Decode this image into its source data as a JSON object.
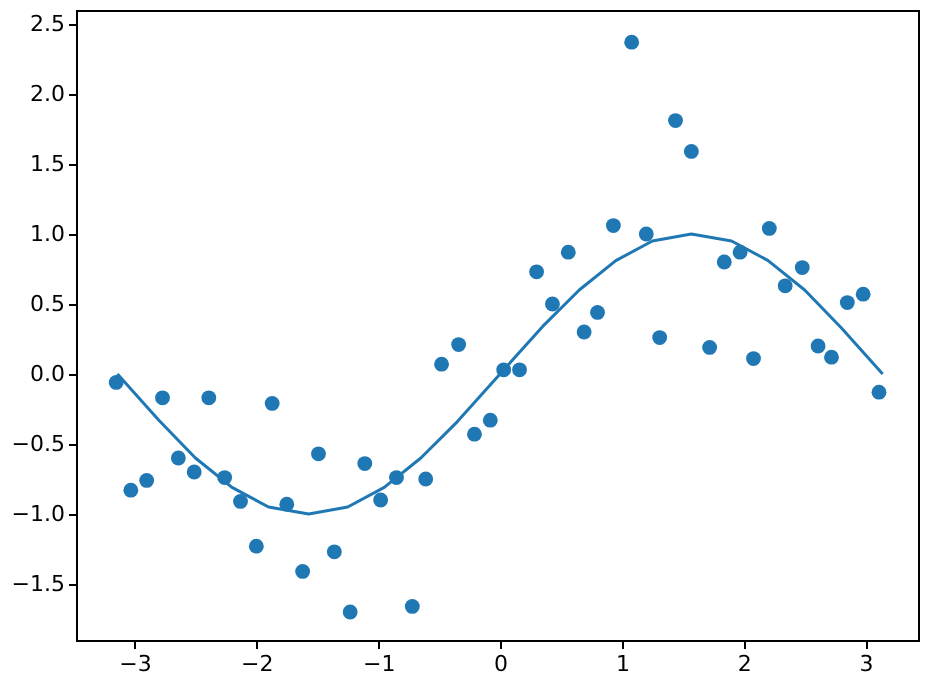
{
  "chart_data": {
    "type": "scatter",
    "xlim": [
      -3.48,
      3.43
    ],
    "ylim": [
      -1.9,
      2.6
    ],
    "xticks": [
      {
        "value": -3,
        "label": "−3"
      },
      {
        "value": -2,
        "label": "−2"
      },
      {
        "value": -1,
        "label": "−1"
      },
      0,
      1,
      2,
      3
    ],
    "yticks": [
      {
        "value": -1.5,
        "label": "−1.5"
      },
      {
        "value": -1.0,
        "label": "−1.0"
      },
      {
        "value": -0.5,
        "label": "−0.5"
      },
      {
        "value": 0.0,
        "label": "0.0"
      },
      0.5,
      {
        "value": 1.0,
        "label": "1.0"
      },
      1.5,
      {
        "value": 2.0,
        "label": "2.0"
      },
      2.5
    ],
    "grid": false,
    "series": [
      {
        "marker": "circle",
        "color": "#1f77b4",
        "x": [
          -3.15,
          -3.03,
          -2.9,
          -2.77,
          -2.64,
          -2.51,
          -2.39,
          -2.26,
          -2.13,
          -2.0,
          -1.87,
          -1.75,
          -1.62,
          -1.49,
          -1.36,
          -1.23,
          -1.11,
          -0.98,
          -0.85,
          -0.72,
          -0.61,
          -0.48,
          -0.34,
          -0.21,
          -0.08,
          0.03,
          0.16,
          0.3,
          0.43,
          0.56,
          0.69,
          0.8,
          0.93,
          1.08,
          1.2,
          1.31,
          1.44,
          1.57,
          1.72,
          1.84,
          1.97,
          2.08,
          2.21,
          2.34,
          2.48,
          2.61,
          2.72,
          2.85,
          2.98,
          3.11
        ],
        "values": [
          -0.06,
          -0.83,
          -0.76,
          -0.17,
          -0.6,
          -0.7,
          -0.17,
          -0.74,
          -0.91,
          -1.23,
          -0.21,
          -0.93,
          -1.41,
          -0.57,
          -1.27,
          -1.7,
          -0.64,
          -0.9,
          -0.74,
          -1.66,
          -0.75,
          0.07,
          0.21,
          -0.43,
          -0.33,
          0.03,
          0.03,
          0.73,
          0.5,
          0.87,
          0.3,
          0.44,
          1.06,
          2.37,
          1.0,
          0.26,
          1.81,
          1.59,
          0.19,
          0.8,
          0.87,
          0.11,
          1.04,
          0.63,
          0.76,
          0.2,
          0.12,
          0.51,
          0.57,
          -0.13
        ]
      },
      {
        "type": "line",
        "marker": "none",
        "color": "#1f77b4",
        "line_style": "solid",
        "x": [
          -3.14,
          -2.8,
          -2.5,
          -2.2,
          -1.9,
          -1.57,
          -1.25,
          -0.95,
          -0.65,
          -0.35,
          0.0,
          0.35,
          0.65,
          0.95,
          1.25,
          1.57,
          1.9,
          2.2,
          2.5,
          2.8,
          3.14
        ],
        "values": [
          0.0,
          -0.33,
          -0.6,
          -0.81,
          -0.95,
          -1.0,
          -0.95,
          -0.81,
          -0.6,
          -0.34,
          0.0,
          0.34,
          0.6,
          0.81,
          0.95,
          1.0,
          0.95,
          0.81,
          0.6,
          0.33,
          0.0
        ]
      }
    ]
  }
}
